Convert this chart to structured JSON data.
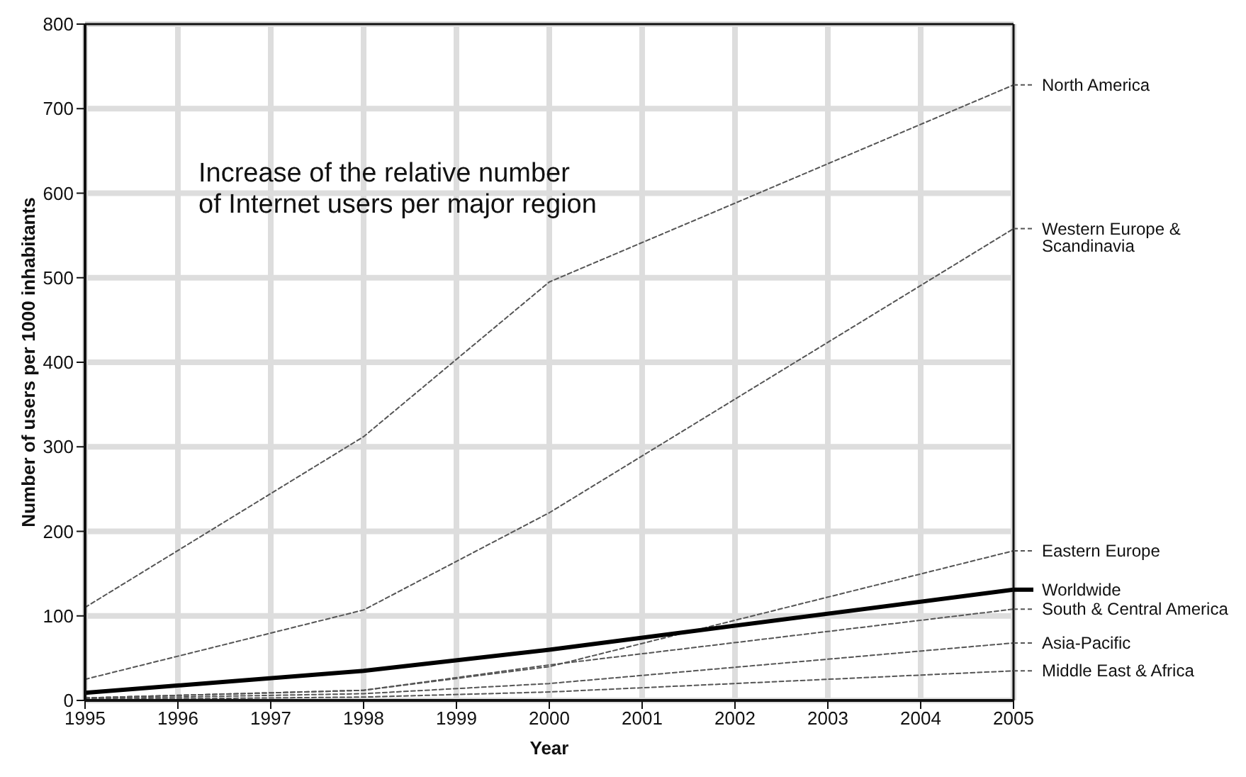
{
  "chart_data": {
    "type": "line",
    "title": "Increase of the relative number\nof Internet users per major region",
    "xlabel": "Year",
    "ylabel": "Number of users per 1000 inhabitants",
    "x": [
      1995,
      1998,
      2000,
      2005
    ],
    "series": [
      {
        "name": "North America",
        "color": "#555555",
        "line_style": "dashed",
        "values": [
          110,
          312,
          495,
          728
        ]
      },
      {
        "name": "Western Europe & Scandinavia",
        "color": "#555555",
        "line_style": "dashed",
        "values": [
          25,
          107,
          222,
          558
        ]
      },
      {
        "name": "Eastern Europe",
        "color": "#555555",
        "line_style": "dashed",
        "values": [
          3,
          12,
          40,
          177
        ]
      },
      {
        "name": "Worldwide",
        "color": "#000000",
        "line_style": "solid",
        "values": [
          9,
          35,
          60,
          131
        ]
      },
      {
        "name": "South & Central America",
        "color": "#555555",
        "line_style": "dashed",
        "values": [
          3,
          12,
          42,
          108
        ]
      },
      {
        "name": "Asia-Pacific",
        "color": "#555555",
        "line_style": "dashed",
        "values": [
          2,
          8,
          20,
          68
        ]
      },
      {
        "name": "Middle East & Africa",
        "color": "#555555",
        "line_style": "dashed",
        "values": [
          1,
          4,
          10,
          35
        ]
      }
    ],
    "xlim": [
      1995,
      2005
    ],
    "xticks": [
      1995,
      1996,
      1997,
      1998,
      1999,
      2000,
      2001,
      2002,
      2003,
      2004,
      2005
    ],
    "ylim": [
      0,
      800
    ],
    "yticks": [
      0,
      100,
      200,
      300,
      400,
      500,
      600,
      700,
      800
    ],
    "grid": true,
    "marker": "none",
    "legend": "right"
  }
}
